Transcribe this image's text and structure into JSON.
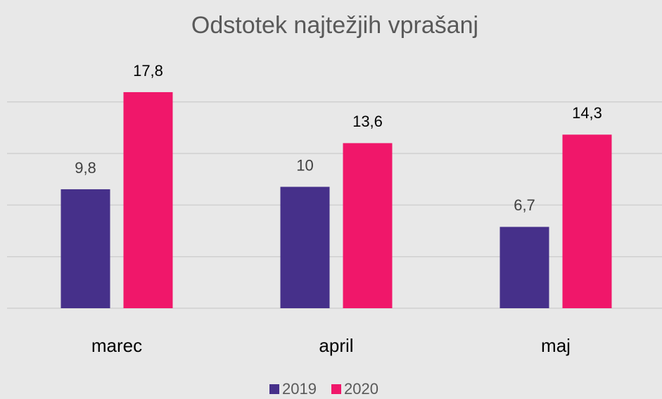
{
  "chart_data": {
    "type": "bar",
    "title": "Odstotek najtežjih vprašanj",
    "categories": [
      "marec",
      "april",
      "maj"
    ],
    "series": [
      {
        "name": "2019",
        "color": "#46308a",
        "values": [
          9.8,
          10,
          6.7
        ],
        "value_labels": [
          "9,8",
          "10",
          "6,7"
        ]
      },
      {
        "name": "2020",
        "color": "#f0176a",
        "values": [
          17.8,
          13.6,
          14.3
        ],
        "value_labels": [
          "17,8",
          "13,6",
          "14,3"
        ]
      }
    ],
    "ylim": [
      0,
      20
    ],
    "yticks": [
      0,
      4.25,
      8.5,
      12.75,
      17
    ],
    "grid": true,
    "legend": "bottom"
  }
}
